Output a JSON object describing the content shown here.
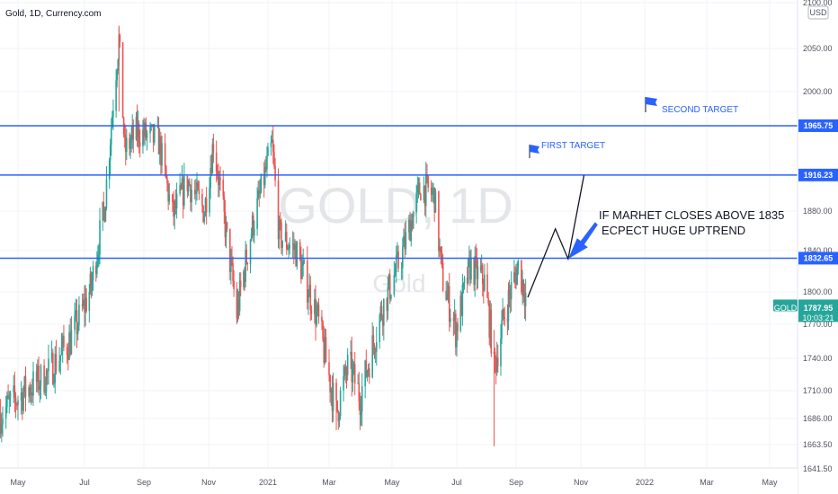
{
  "header": {
    "symbol_line": "Gold, 1D, Currency.com"
  },
  "currency_badge": "USD",
  "watermark": {
    "symbol": "GOLD, 1D",
    "name": "Gold"
  },
  "price_tag": {
    "label": "GOLD",
    "price": "1787.95",
    "countdown": "10:03:21",
    "color": "#26a69a"
  },
  "colors": {
    "up": "#26a69a",
    "down": "#ef5350",
    "levels": "#2962ff",
    "arrow": "#2962ff"
  },
  "annotations": {
    "note_line1": "IF MARHET CLOSES ABOVE 1835",
    "note_line2": "ECPECT HUGE UPTREND",
    "first_target": "FIRST TARGET",
    "second_target": "SECOND TARGET"
  },
  "chart_data": {
    "type": "candlestick",
    "title": "",
    "ylim": [
      1630,
      2110
    ],
    "y_ticks": [
      "2100.00",
      "2050.00",
      "2000.00",
      "1880.00",
      "1840.00",
      "1800.00",
      "1770.00",
      "1740.00",
      "1710.00",
      "1686.00",
      "1663.50",
      "1641.50"
    ],
    "y_tick_values": [
      2100,
      2050,
      2000,
      1880,
      1840,
      1800,
      1770,
      1740,
      1710,
      1686,
      1663.5,
      1641.5
    ],
    "x_labels": [
      "May",
      "Jul",
      "Sep",
      "Nov",
      "2021",
      "Mar",
      "May",
      "Jul",
      "Sep",
      "Nov",
      "2022",
      "Mar",
      "May"
    ],
    "x_label_dates": [
      "2020-05-01",
      "2020-07-01",
      "2020-09-01",
      "2020-11-01",
      "2021-01-01",
      "2021-03-01",
      "2021-05-01",
      "2021-07-01",
      "2021-09-01",
      "2021-11-01",
      "2022-01-01",
      "2022-03-01",
      "2022-05-01"
    ],
    "levels": [
      {
        "value": 1965.75,
        "label": "1965.75"
      },
      {
        "value": 1916.23,
        "label": "1916.23"
      },
      {
        "value": 1832.65,
        "label": "1832.65"
      }
    ],
    "projection_path": [
      {
        "date": "2021-09-12",
        "price": 1795
      },
      {
        "date": "2021-10-08",
        "price": 1862
      },
      {
        "date": "2021-10-20",
        "price": 1832
      },
      {
        "date": "2021-11-04",
        "price": 1916
      }
    ],
    "trend_points": [
      {
        "date": "2020-04-15",
        "price": 1690
      },
      {
        "date": "2020-05-10",
        "price": 1712
      },
      {
        "date": "2020-05-28",
        "price": 1725
      },
      {
        "date": "2020-06-20",
        "price": 1760
      },
      {
        "date": "2020-07-08",
        "price": 1805
      },
      {
        "date": "2020-07-22",
        "price": 1885
      },
      {
        "date": "2020-08-06",
        "price": 2060
      },
      {
        "date": "2020-08-12",
        "price": 1940
      },
      {
        "date": "2020-08-25",
        "price": 1960
      },
      {
        "date": "2020-09-15",
        "price": 1950
      },
      {
        "date": "2020-09-28",
        "price": 1875
      },
      {
        "date": "2020-10-12",
        "price": 1910
      },
      {
        "date": "2020-10-28",
        "price": 1880
      },
      {
        "date": "2020-11-06",
        "price": 1950
      },
      {
        "date": "2020-11-30",
        "price": 1780
      },
      {
        "date": "2020-12-15",
        "price": 1860
      },
      {
        "date": "2021-01-05",
        "price": 1945
      },
      {
        "date": "2021-01-12",
        "price": 1855
      },
      {
        "date": "2021-01-28",
        "price": 1840
      },
      {
        "date": "2021-02-18",
        "price": 1775
      },
      {
        "date": "2021-03-08",
        "price": 1690
      },
      {
        "date": "2021-03-20",
        "price": 1735
      },
      {
        "date": "2021-03-31",
        "price": 1705
      },
      {
        "date": "2021-04-20",
        "price": 1780
      },
      {
        "date": "2021-05-10",
        "price": 1835
      },
      {
        "date": "2021-05-28",
        "price": 1905
      },
      {
        "date": "2021-06-10",
        "price": 1895
      },
      {
        "date": "2021-06-17",
        "price": 1815
      },
      {
        "date": "2021-06-30",
        "price": 1765
      },
      {
        "date": "2021-07-15",
        "price": 1825
      },
      {
        "date": "2021-07-30",
        "price": 1810
      },
      {
        "date": "2021-08-06",
        "price": 1760
      },
      {
        "date": "2021-08-09",
        "price": 1730
      },
      {
        "date": "2021-08-20",
        "price": 1780
      },
      {
        "date": "2021-09-03",
        "price": 1825
      },
      {
        "date": "2021-09-12",
        "price": 1790
      }
    ]
  }
}
